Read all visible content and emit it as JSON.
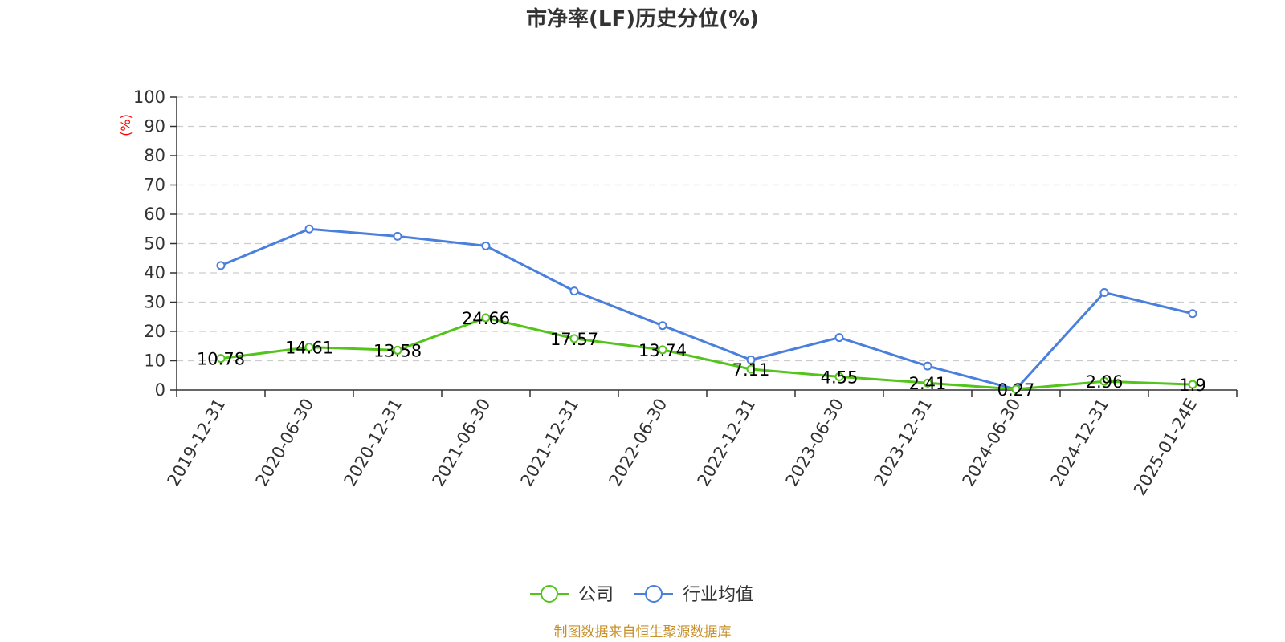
{
  "chart_data": {
    "type": "line",
    "title": "市净率(LF)历史分位(%)",
    "ylabel": "(%)",
    "xlabel": "",
    "ylim": [
      0,
      100
    ],
    "yticks": [
      0,
      10,
      20,
      30,
      40,
      50,
      60,
      70,
      80,
      90,
      100
    ],
    "grid": "horizontal dashed",
    "legend_position": "bottom-center",
    "categories": [
      "2019-12-31",
      "2020-06-30",
      "2020-12-31",
      "2021-06-30",
      "2021-12-31",
      "2022-06-30",
      "2022-12-31",
      "2023-06-30",
      "2023-12-31",
      "2024-06-30",
      "2024-12-31",
      "2025-01-24E"
    ],
    "series": [
      {
        "name": "公司",
        "color": "#52c41a",
        "values": [
          10.78,
          14.61,
          13.58,
          24.66,
          17.57,
          13.74,
          7.11,
          4.55,
          2.41,
          0.27,
          2.96,
          1.9
        ],
        "labels": [
          "10.78",
          "14.61",
          "13.58",
          "24.66",
          "17.57",
          "13.74",
          "7.11",
          "4.55",
          "2.41",
          "0.27",
          "2.96",
          "1.9"
        ]
      },
      {
        "name": "行业均值",
        "color": "#4a7fdd",
        "values": [
          42.5,
          55.0,
          52.5,
          49.2,
          33.8,
          22.0,
          10.3,
          17.9,
          8.2,
          0.27,
          33.3,
          26.1
        ]
      }
    ],
    "source": "制图数据来自恒生聚源数据库"
  },
  "colors": {
    "axis": "#333333",
    "grid": "#cccccc",
    "ylabel": "#ff0000",
    "source": "#c8902a"
  }
}
